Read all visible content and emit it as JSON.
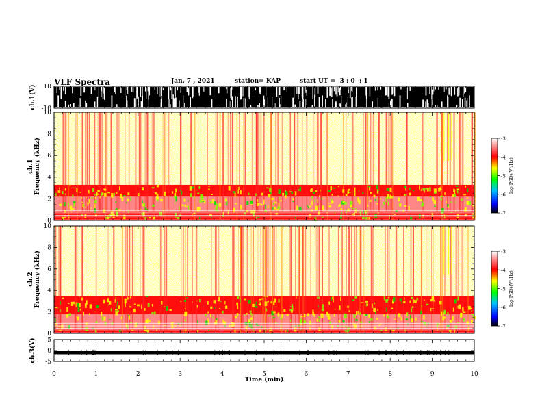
{
  "header": {
    "title": "VLF Spectra",
    "date": "Jan. 7 , 2021",
    "station": "station= KAP",
    "start_ut": "start UT =  3 : 0  : 1"
  },
  "colors": {
    "spectrogram_low": "#ffffff",
    "spectrogram_mid": "#ff0000",
    "spectrogram_high": "#ffff00",
    "waveform": "#000000"
  },
  "chart_data": [
    {
      "type": "line",
      "panel": "ch1-waveform",
      "ylabel": "ch.1(V)",
      "ytick_labels": [
        "10",
        "-10"
      ],
      "ylim": [
        -10,
        10
      ],
      "xlim": [
        0,
        10
      ],
      "description_values": {
        "typical_amplitude_V": 10,
        "saturated": true
      }
    },
    {
      "type": "heatmap",
      "panel": "ch1-spectrogram",
      "ylabel": "ch.1\nFrequency (kHz)",
      "ylim": [
        0,
        10
      ],
      "yticks": [
        0,
        2,
        4,
        6,
        8,
        10
      ],
      "xlim": [
        0,
        10
      ],
      "zlim": [
        -7,
        -3
      ],
      "colorbar_label": "log(PSD)(V²/Hz)",
      "colorbar_ticks": [
        "-3",
        "-4",
        "-5",
        "-6",
        "-7"
      ],
      "bands": [
        {
          "from_khz": 0.0,
          "to_khz": 0.3,
          "level": -4.2
        },
        {
          "from_khz": 0.3,
          "to_khz": 0.8,
          "level": -4.4
        },
        {
          "from_khz": 0.8,
          "to_khz": 2.2,
          "level": -3.8
        },
        {
          "from_khz": 2.2,
          "to_khz": 3.3,
          "level": -4.1
        },
        {
          "from_khz": 3.3,
          "to_khz": 10.0,
          "level": -4.9
        }
      ]
    },
    {
      "type": "heatmap",
      "panel": "ch2-spectrogram",
      "ylabel": "ch.2\nFrequency (kHz)",
      "ylim": [
        0,
        10
      ],
      "yticks": [
        0,
        2,
        4,
        6,
        8,
        10
      ],
      "xlim": [
        0,
        10
      ],
      "zlim": [
        -7,
        -3
      ],
      "colorbar_label": "log(PSD)(V²/Hz)",
      "colorbar_ticks": [
        "-3",
        "-4",
        "-5",
        "-6",
        "-7"
      ],
      "bands": [
        {
          "from_khz": 0.0,
          "to_khz": 0.3,
          "level": -4.3
        },
        {
          "from_khz": 0.3,
          "to_khz": 1.8,
          "level": -3.6
        },
        {
          "from_khz": 1.8,
          "to_khz": 3.5,
          "level": -4.0
        },
        {
          "from_khz": 3.5,
          "to_khz": 10.0,
          "level": -4.8
        }
      ]
    },
    {
      "type": "line",
      "panel": "ch3-waveform",
      "ylabel": "ch.3(V)",
      "ytick_labels": [
        "5",
        "0",
        "-5"
      ],
      "ylim": [
        -5,
        5
      ],
      "xlim": [
        0,
        10
      ],
      "description_values": {
        "offset_V": -1.0,
        "amplitude_V": 0.4
      }
    }
  ],
  "x_axis": {
    "label": "Time (min)",
    "ticks": [
      "0",
      "1",
      "2",
      "3",
      "4",
      "5",
      "6",
      "7",
      "8",
      "9",
      "10"
    ]
  },
  "side_labels": {
    "ch1_wave": "ch.1(V)",
    "ch1_spec_a": "ch.1",
    "ch1_spec_b": "Frequency (kHz)",
    "ch2_spec_a": "ch.2",
    "ch2_spec_b": "Frequency (kHz)",
    "ch3_wave": "ch.3(V)",
    "cbar1": "log(PSD)(V²/Hz)",
    "cbar2": "log(PSD)(V²/Hz)"
  }
}
